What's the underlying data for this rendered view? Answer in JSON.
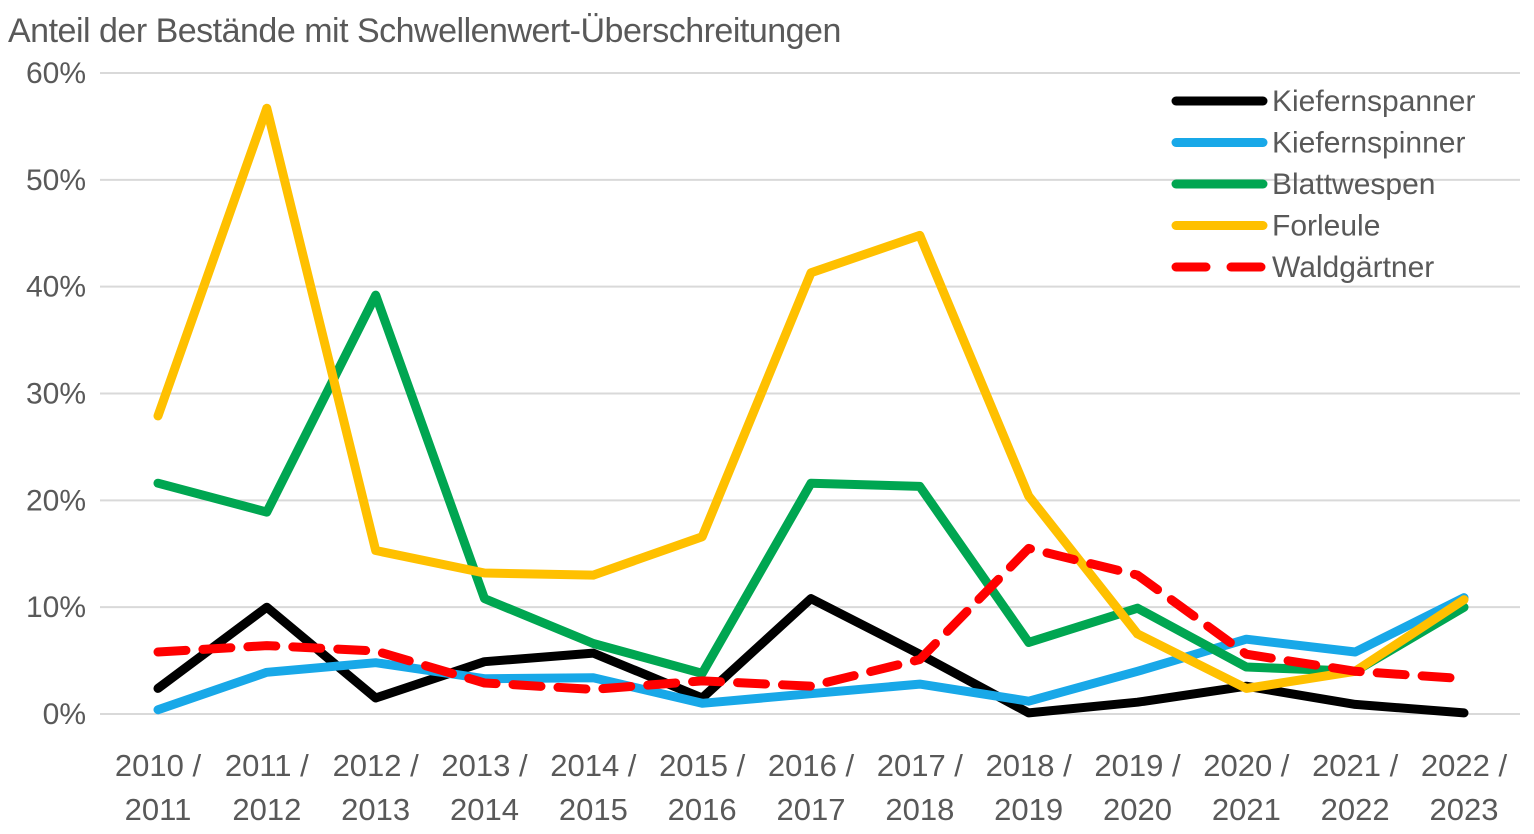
{
  "chart_data": {
    "type": "line",
    "title": "Anteil der Bestände mit Schwellenwert-Überschreitungen",
    "categories": [
      [
        "2010 /",
        "2011"
      ],
      [
        "2011 /",
        "2012"
      ],
      [
        "2012 /",
        "2013"
      ],
      [
        "2013 /",
        "2014"
      ],
      [
        "2014 /",
        "2015"
      ],
      [
        "2015 /",
        "2016"
      ],
      [
        "2016 /",
        "2017"
      ],
      [
        "2017 /",
        "2018"
      ],
      [
        "2018 /",
        "2019"
      ],
      [
        "2019 /",
        "2020"
      ],
      [
        "2020 /",
        "2021"
      ],
      [
        "2021 /",
        "2022"
      ],
      [
        "2022 /",
        "2023"
      ]
    ],
    "series": [
      {
        "name": "Kiefernspanner",
        "color": "#000000",
        "dashed": false,
        "values": [
          2.4,
          10.0,
          1.5,
          4.9,
          5.7,
          1.5,
          10.8,
          5.6,
          0.1,
          1.1,
          2.6,
          0.9,
          0.1
        ]
      },
      {
        "name": "Kiefernspinner",
        "color": "#18A8E8",
        "dashed": false,
        "values": [
          0.4,
          3.9,
          4.8,
          3.3,
          3.4,
          1.0,
          1.9,
          2.8,
          1.2,
          4.0,
          7.0,
          5.8,
          10.9
        ]
      },
      {
        "name": "Blattwespen",
        "color": "#00A651",
        "dashed": false,
        "values": [
          21.6,
          18.9,
          39.2,
          10.8,
          6.6,
          3.8,
          21.6,
          21.3,
          6.7,
          9.9,
          4.4,
          4.0,
          10.0
        ]
      },
      {
        "name": "Forleule",
        "color": "#FFC000",
        "dashed": false,
        "values": [
          27.9,
          56.7,
          15.3,
          13.2,
          13.0,
          16.6,
          41.3,
          44.8,
          20.4,
          7.5,
          2.4,
          4.0,
          10.7
        ]
      },
      {
        "name": "Waldgärtner",
        "color": "#FF0000",
        "dashed": true,
        "values": [
          5.8,
          6.4,
          5.9,
          2.9,
          2.3,
          3.1,
          2.6,
          5.1,
          15.5,
          13.0,
          5.6,
          4.0,
          3.3
        ]
      }
    ],
    "ylim": [
      0,
      60
    ],
    "yticks": [
      {
        "value": 60,
        "label": "60%"
      },
      {
        "value": 50,
        "label": "50%"
      },
      {
        "value": 40,
        "label": "40%"
      },
      {
        "value": 30,
        "label": "30%"
      },
      {
        "value": 20,
        "label": "20%"
      },
      {
        "value": 10,
        "label": "10%"
      },
      {
        "value": 0,
        "label": "0%"
      }
    ],
    "grid": "horizontal",
    "legend_position": "top-right",
    "xlabel": "",
    "ylabel": "",
    "text_color": "#595959",
    "grid_color": "#D9D9D9",
    "background_color": "#FFFFFF"
  }
}
